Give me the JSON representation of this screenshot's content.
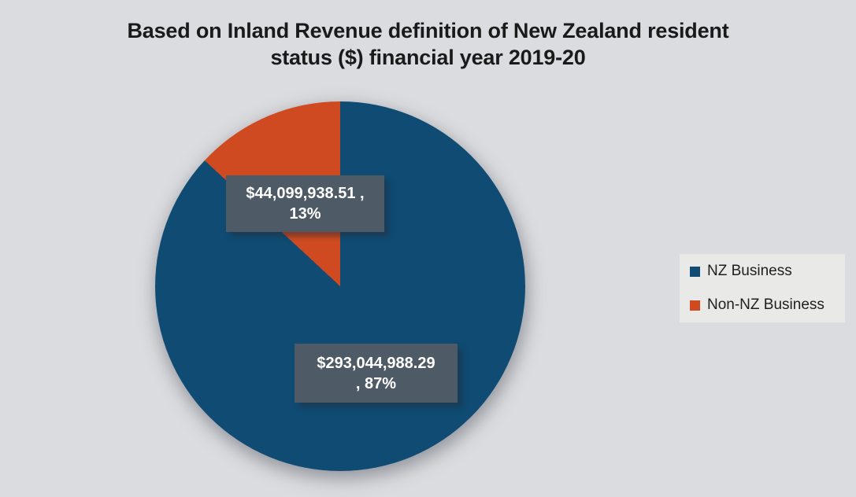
{
  "header": {
    "title_lines": [
      "Based on Inland Revenue definition of New Zealand resident",
      "status ($) financial year 2019-20"
    ]
  },
  "chart_data": {
    "type": "pie",
    "title": "Based on Inland Revenue definition of New Zealand resident status ($) financial year 2019-20",
    "slices": [
      {
        "name": "NZ Business",
        "value": 293044988.29,
        "display_value": "$293,044,988.29",
        "percent": 87,
        "color": "#0F4B73",
        "label_line1": "$293,044,988.29",
        "label_line2": ", 87%"
      },
      {
        "name": "Non-NZ Business",
        "value": 44099938.51,
        "display_value": "$44,099,938.51",
        "percent": 13,
        "color": "#CF4A20",
        "label_line1": "$44,099,938.51 ,",
        "label_line2": "13%"
      }
    ],
    "legend_position": "right",
    "start_angle_deg": 0,
    "data_labels_full": [
      "$293,044,988.29 , 87%",
      "$44,099,938.51 , 13%"
    ]
  },
  "colors": {
    "page_background": "#DBDCDF",
    "legend_background": "#E9E9E7",
    "callout_background": "#4E5A65",
    "callout_text": "#FFFFFF",
    "title_text": "#1A1A1A"
  }
}
